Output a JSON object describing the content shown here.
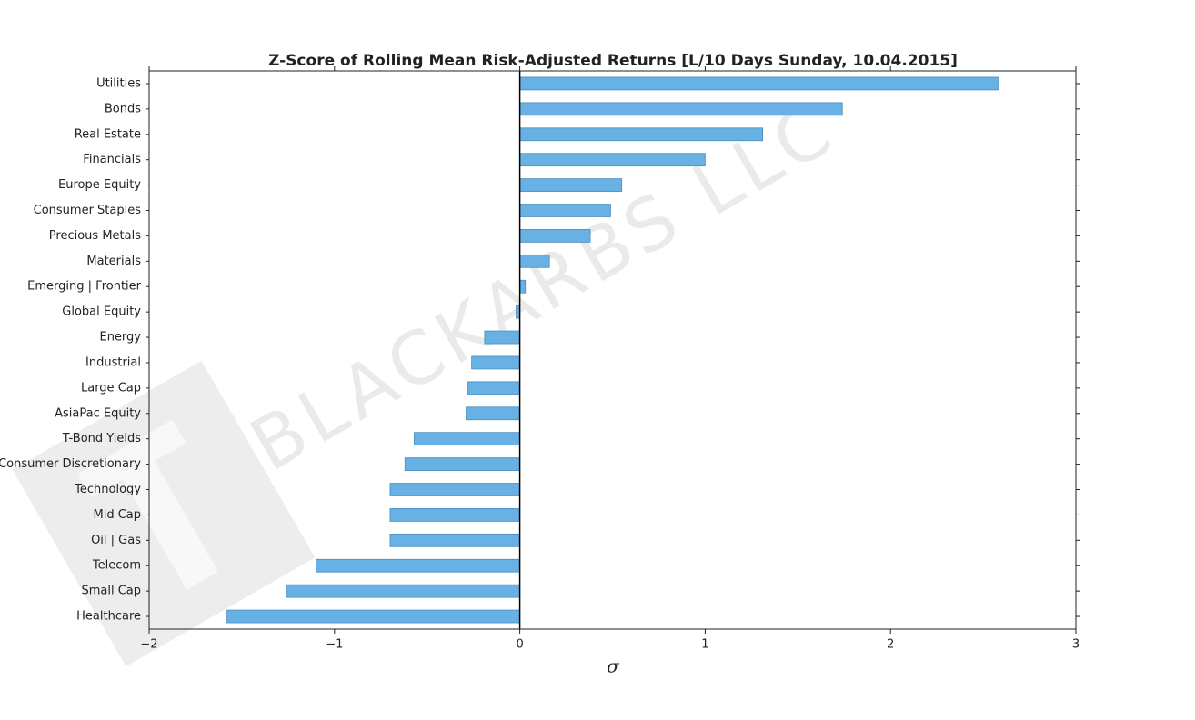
{
  "chart_data": {
    "type": "barh",
    "title": "Z-Score of Rolling Mean Risk-Adjusted Returns [L/10 Days Sunday, 10.04.2015]",
    "x_label": "σ",
    "watermark": "BLACKARBS LLC",
    "categories": [
      "Utilities",
      "Bonds",
      "Real Estate",
      "Financials",
      "Europe Equity",
      "Consumer Staples",
      "Precious Metals",
      "Materials",
      "Emerging | Frontier",
      "Global Equity",
      "Energy",
      "Industrial",
      "Large Cap",
      "AsiaPac Equity",
      "T-Bond Yields",
      "Consumer Discretionary",
      "Technology",
      "Mid Cap",
      "Oil | Gas",
      "Telecom",
      "Small Cap",
      "Healthcare"
    ],
    "values": [
      2.58,
      1.74,
      1.31,
      1.0,
      0.55,
      0.49,
      0.38,
      0.16,
      0.03,
      -0.02,
      -0.19,
      -0.26,
      -0.28,
      -0.29,
      -0.57,
      -0.62,
      -0.7,
      -0.7,
      -0.7,
      -1.1,
      -1.26,
      -1.58
    ],
    "color": "#67b1e4",
    "xlim": [
      -2,
      3
    ],
    "xticks": [
      {
        "value": -2,
        "label": "−2"
      },
      {
        "value": -1,
        "label": "−1"
      },
      0,
      1,
      2,
      3
    ]
  }
}
